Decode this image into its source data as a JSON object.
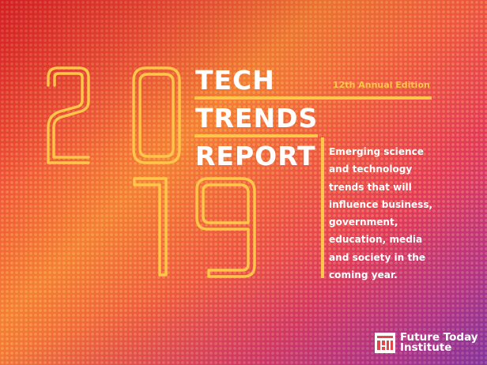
{
  "cover": {
    "year": {
      "digit1": "2",
      "digit2": "0",
      "digit3": "1",
      "digit4": "9"
    },
    "title_lines": [
      "TECH",
      "TRENDS",
      "REPORT"
    ],
    "edition": "12th Annual Edition",
    "description_lines": [
      "Emerging science",
      "and technology",
      "trends that will",
      "influence business,",
      "government,",
      "education, media",
      "and society in the",
      "coming year."
    ],
    "logo": {
      "icon": "future-today-institute-logo-icon",
      "line1": "Future Today",
      "line2": "Institute"
    },
    "colors": {
      "accent": "#ffc64a",
      "text": "#ffffff",
      "orange": "#f47f35",
      "red": "#e8252c",
      "purple": "#8a3a9c"
    }
  }
}
